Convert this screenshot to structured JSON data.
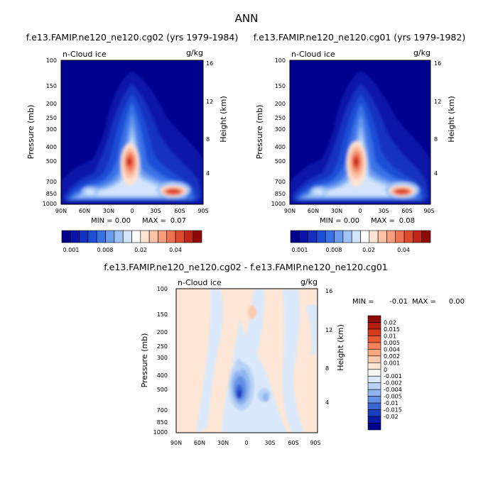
{
  "figure": {
    "title": "ANN"
  },
  "chart_data": [
    {
      "type": "heatmap",
      "title": "f.e13.FAMIP.ne120_ne120.cg02 (yrs 1979-1984)",
      "left_label": "n-Cloud ice",
      "units": "g/kg",
      "ylabel": "Pressure (mb)",
      "y2label": "Height (km)",
      "x_ticks": [
        "90N",
        "60N",
        "30N",
        "0",
        "30S",
        "60S",
        "90S"
      ],
      "y_ticks": [
        "100",
        "150",
        "200",
        "250",
        "300",
        "400",
        "500",
        "700",
        "850",
        "1000"
      ],
      "y2_ticks": [
        "4",
        "8",
        "12",
        "16"
      ],
      "xlim": [
        90,
        -90
      ],
      "ylim": [
        1000,
        100
      ],
      "y_scale": "log",
      "min_label": "MIN =",
      "min_value": "0.00",
      "max_label": "MAX =",
      "max_value": "0.07",
      "colorbar_labels": [
        "0.001",
        "0.008",
        "0.02",
        "0.04"
      ],
      "features": [
        {
          "lat": -5,
          "p": 500,
          "value": 0.07
        },
        {
          "lat": -52,
          "p": 840,
          "value": 0.04
        },
        {
          "lat": 62,
          "p": 860,
          "value": 0.01
        }
      ]
    },
    {
      "type": "heatmap",
      "title": "f.e13.FAMIP.ne120_ne120.cg01 (yrs 1979-1982)",
      "left_label": "n-Cloud ice",
      "units": "g/kg",
      "ylabel": "Pressure (mb)",
      "y2label": "Height (km)",
      "x_ticks": [
        "90N",
        "60N",
        "30N",
        "0",
        "30S",
        "60S",
        "90S"
      ],
      "y_ticks": [
        "100",
        "150",
        "200",
        "250",
        "300",
        "400",
        "500",
        "700",
        "850",
        "1000"
      ],
      "y2_ticks": [
        "4",
        "8",
        "12",
        "16"
      ],
      "xlim": [
        90,
        -90
      ],
      "ylim": [
        1000,
        100
      ],
      "y_scale": "log",
      "min_label": "MIN =",
      "min_value": "0.00",
      "max_label": "MAX =",
      "max_value": "0.08",
      "colorbar_labels": [
        "0.001",
        "0.008",
        "0.02",
        "0.04"
      ],
      "features": [
        {
          "lat": -5,
          "p": 500,
          "value": 0.08
        },
        {
          "lat": -52,
          "p": 840,
          "value": 0.04
        },
        {
          "lat": 62,
          "p": 860,
          "value": 0.01
        }
      ]
    },
    {
      "type": "heatmap",
      "title": "f.e13.FAMIP.ne120_ne120.cg02 - f.e13.FAMIP.ne120_ne120.cg01",
      "left_label": "n-Cloud ice",
      "units": "g/kg",
      "ylabel": "Pressure (mb)",
      "y2label": "Height (km)",
      "x_ticks": [
        "90N",
        "60N",
        "30N",
        "0",
        "30S",
        "60S",
        "90S"
      ],
      "y_ticks": [
        "100",
        "150",
        "200",
        "250",
        "300",
        "400",
        "500",
        "700",
        "850",
        "1000"
      ],
      "y2_ticks": [
        "4",
        "8",
        "12",
        "16"
      ],
      "xlim": [
        90,
        -90
      ],
      "ylim": [
        1000,
        100
      ],
      "y_scale": "log",
      "min_label": "MIN =",
      "min_value": "-0.01",
      "max_label": "MAX =",
      "max_value": "0.00",
      "colorbar_labels": [
        "0.02",
        "0.015",
        "0.01",
        "0.005",
        "0.004",
        "0.002",
        "0.001",
        "0",
        "-0.001",
        "-0.002",
        "-0.004",
        "-0.005",
        "-0.01",
        "-0.015",
        "-0.02"
      ],
      "features": [
        {
          "lat": -5,
          "p": 500,
          "value": -0.01
        }
      ]
    }
  ],
  "colors": {
    "abs_scale": [
      "#00008e",
      "#0a14a8",
      "#1430c0",
      "#1e4ed6",
      "#3a72e6",
      "#6a9bef",
      "#9ec3f6",
      "#d2e4fb",
      "#ffffff",
      "#fde3d2",
      "#fbc2a6",
      "#f79c7c",
      "#ef7352",
      "#de4a2e",
      "#c0261a",
      "#8e0a0a"
    ],
    "diff_scale": [
      "#8e0a0a",
      "#b31e10",
      "#d43a1c",
      "#ee5a34",
      "#f5815a",
      "#f9a783",
      "#fbc9ae",
      "#fde6d6",
      "#f6f6f4",
      "#d9e9fb",
      "#b6d2f6",
      "#8fb4ef",
      "#6690e4",
      "#3b66d6",
      "#1a3ec0",
      "#0a1aa4",
      "#00008e"
    ]
  }
}
